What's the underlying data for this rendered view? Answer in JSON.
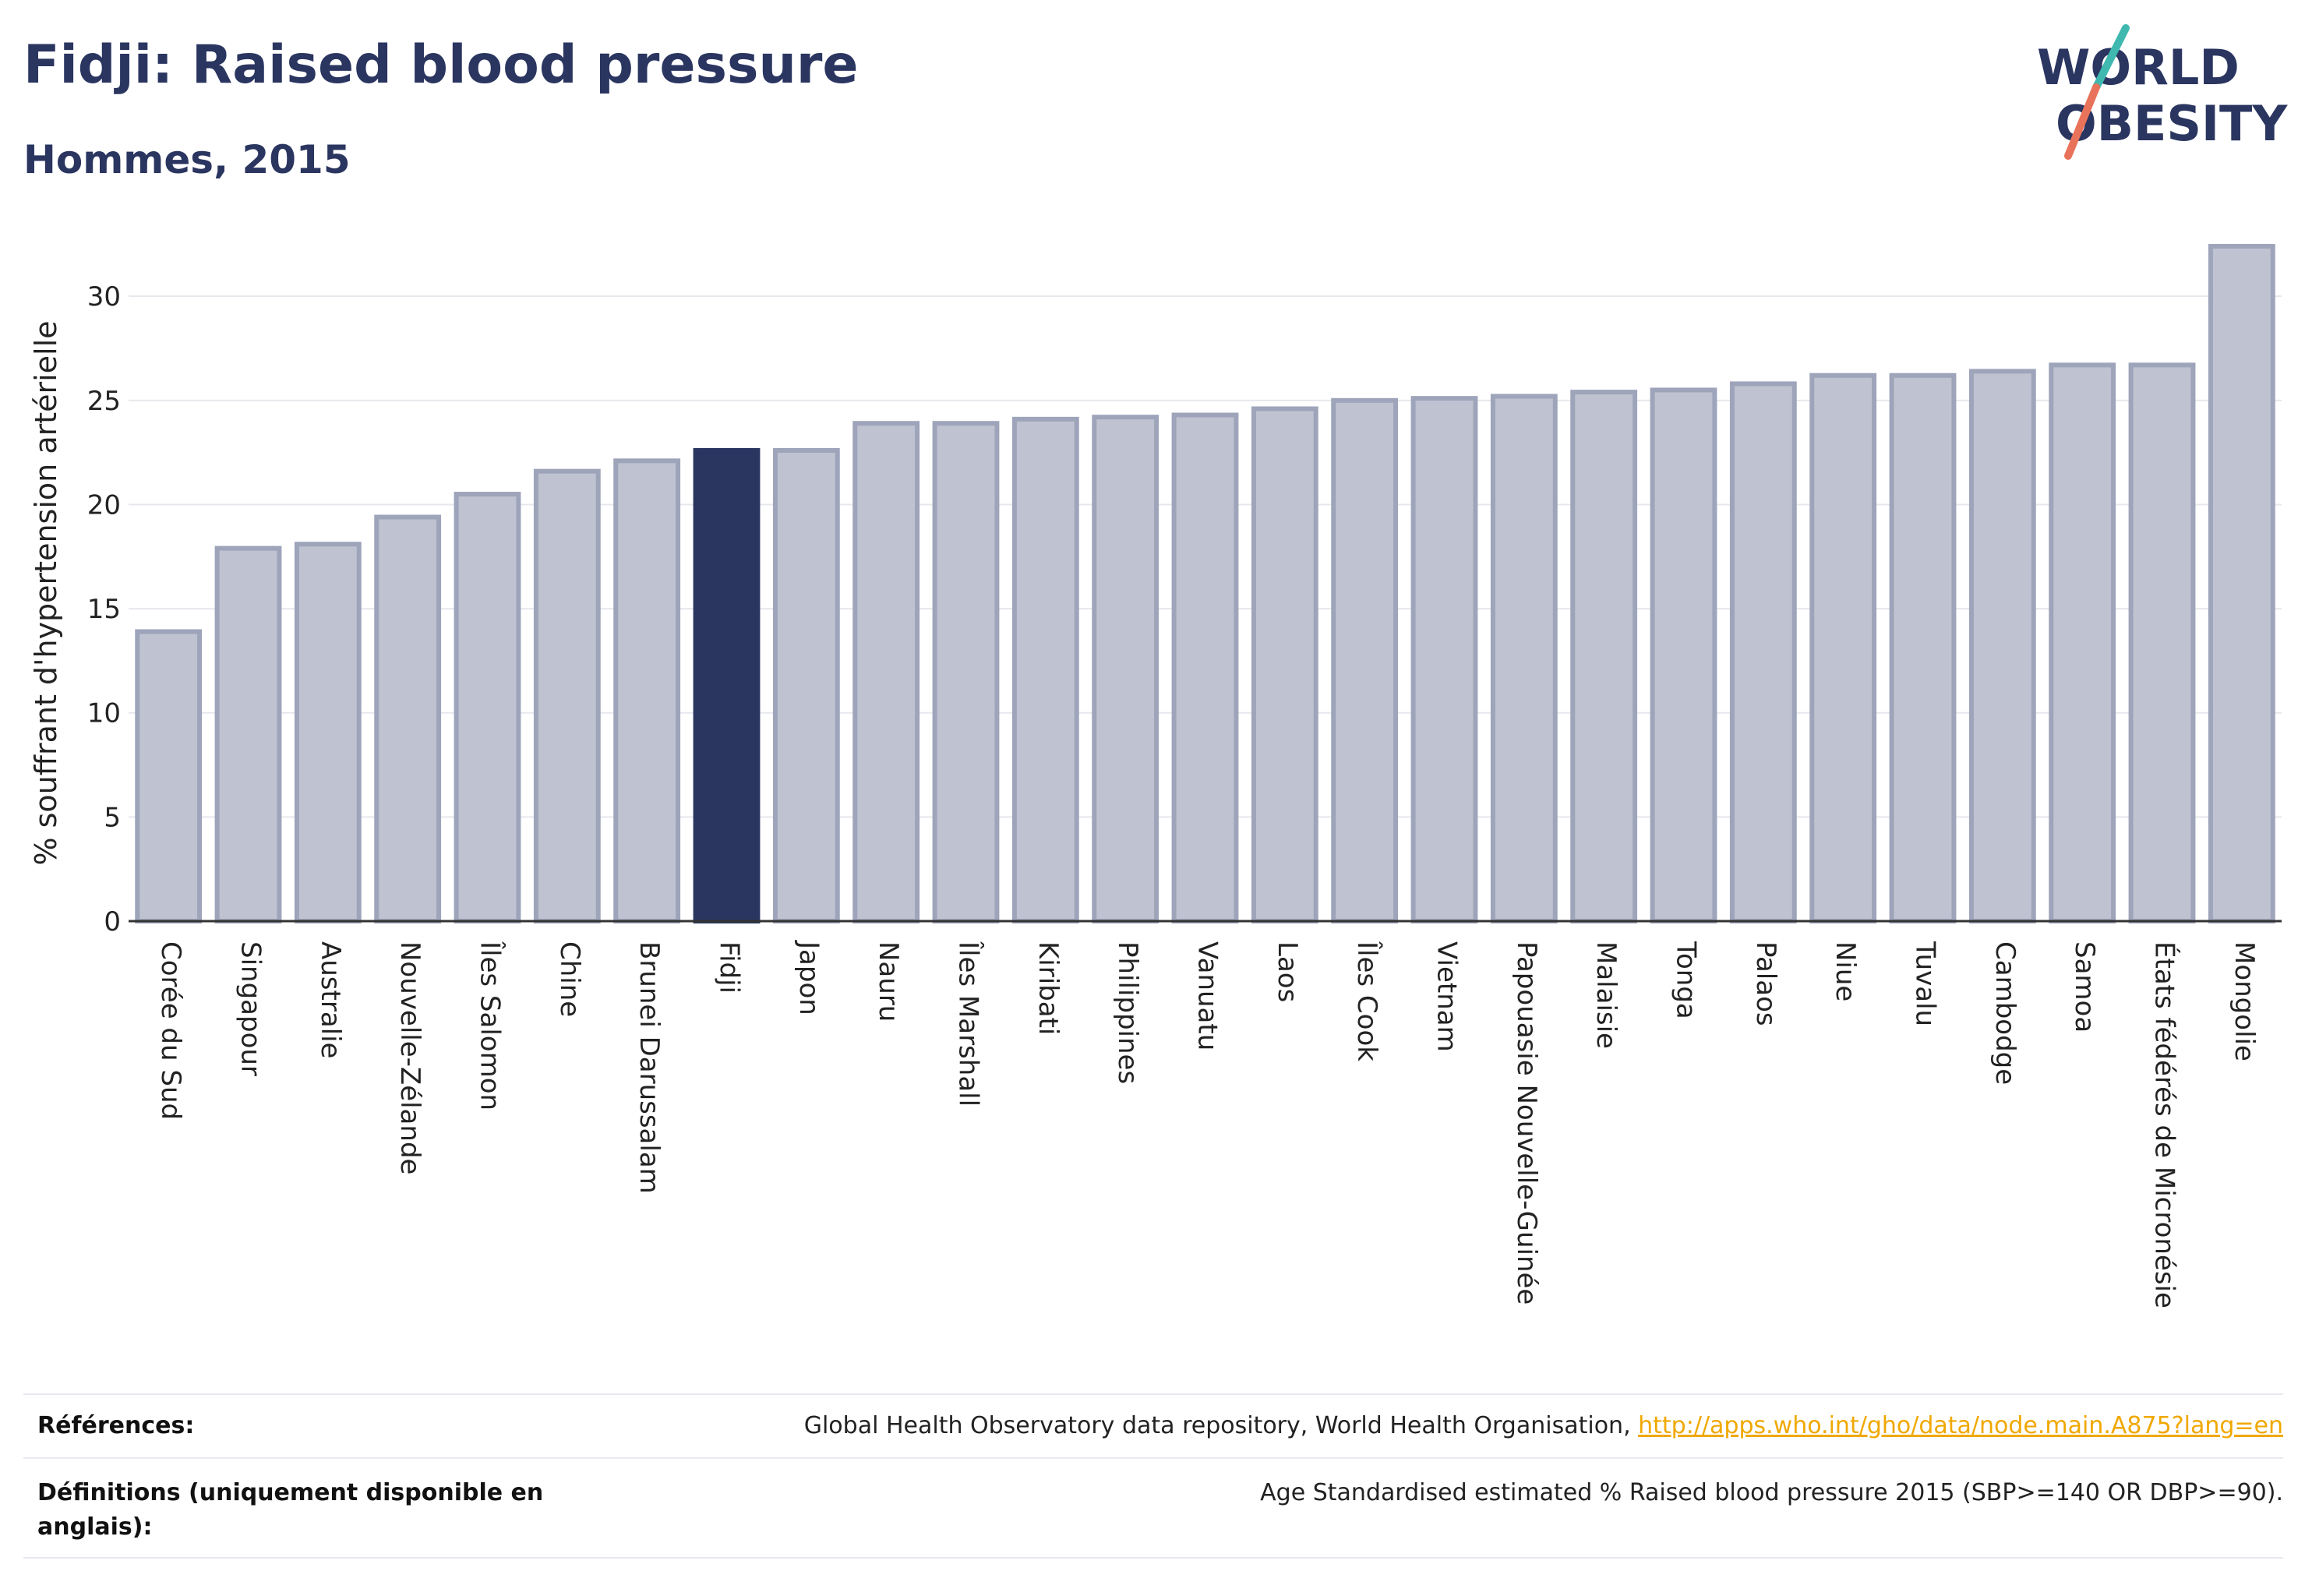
{
  "header": {
    "title": "Fidji: Raised blood pressure",
    "subtitle": "Hommes, 2015",
    "logo_line1": "WORLD",
    "logo_line2": "OBESITY"
  },
  "colors": {
    "highlight": "#2a3560",
    "bar": "#bfc3d1",
    "bar_border": "#9ea4ba",
    "link": "#f0a800"
  },
  "chart_data": {
    "type": "bar",
    "ylabel": "% souffrant d'hypertension artérielle",
    "ylim": [
      0,
      33
    ],
    "yticks": [
      0,
      5,
      10,
      15,
      20,
      25,
      30
    ],
    "grid": true,
    "highlight": "Fidji",
    "categories": [
      "Corée du Sud",
      "Singapour",
      "Australie",
      "Nouvelle-Zélande",
      "Îles Salomon",
      "Chine",
      "Brunei Darussalam",
      "Fidji",
      "Japon",
      "Nauru",
      "Îles Marshall",
      "Kiribati",
      "Philippines",
      "Vanuatu",
      "Laos",
      "Îles Cook",
      "Vietnam",
      "Papouasie Nouvelle-Guinée",
      "Malaisie",
      "Tonga",
      "Palaos",
      "Niue",
      "Tuvalu",
      "Cambodge",
      "Samoa",
      "États fédérés de Micronésie",
      "Mongolie"
    ],
    "values": [
      13.9,
      17.9,
      18.1,
      19.4,
      20.5,
      21.6,
      22.1,
      22.6,
      22.6,
      23.9,
      23.9,
      24.1,
      24.2,
      24.3,
      24.6,
      25.0,
      25.1,
      25.2,
      25.4,
      25.5,
      25.8,
      26.2,
      26.2,
      26.4,
      26.7,
      26.7,
      32.4
    ]
  },
  "footer": {
    "references_label": "Références:",
    "references_text": "Global Health Observatory data repository, World Health Organisation, ",
    "references_link": "http://apps.who.int/gho/data/node.main.A875?lang=en",
    "definitions_label": "Définitions (uniquement disponible en anglais):",
    "definitions_text": "Age Standardised estimated % Raised blood pressure 2015 (SBP>=140 OR DBP>=90)."
  }
}
